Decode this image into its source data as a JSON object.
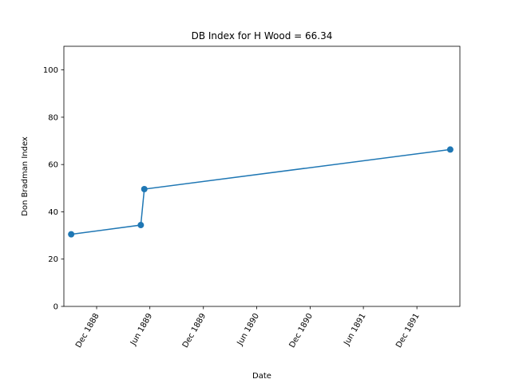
{
  "chart_data": {
    "type": "line",
    "title": "DB Index for H Wood = 66.34",
    "xlabel": "Date",
    "ylabel": "Don Bradman Index",
    "ylim": [
      0,
      110
    ],
    "yticks": [
      0,
      20,
      40,
      60,
      80,
      100
    ],
    "xlim": [
      "1888-08-11",
      "1892-04-26"
    ],
    "xticks": [
      {
        "date": "1888-12-01",
        "label": "Dec 1888"
      },
      {
        "date": "1889-06-01",
        "label": "Jun 1889"
      },
      {
        "date": "1889-12-01",
        "label": "Dec 1889"
      },
      {
        "date": "1890-06-01",
        "label": "Jun 1890"
      },
      {
        "date": "1890-12-01",
        "label": "Dec 1890"
      },
      {
        "date": "1891-06-01",
        "label": "Jun 1891"
      },
      {
        "date": "1891-12-01",
        "label": "Dec 1891"
      }
    ],
    "series": [
      {
        "color": "#1f77b4",
        "marker": "circle",
        "x": [
          "1888-09-05",
          "1889-05-01",
          "1889-05-13",
          "1892-03-24"
        ],
        "y": [
          30.5,
          34.4,
          49.6,
          66.34
        ]
      }
    ],
    "grid": false,
    "legend": "none"
  }
}
